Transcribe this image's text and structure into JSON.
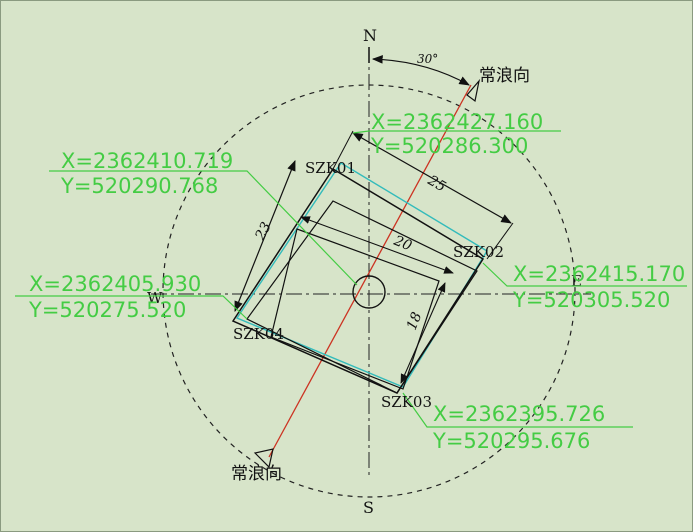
{
  "compass": {
    "north": "N",
    "south": "S",
    "east": "E",
    "west": "W",
    "wave_label_top": "常浪向",
    "wave_label_bottom": "常浪向",
    "angle_label": "30°"
  },
  "points": {
    "szk01": {
      "label": "SZK01",
      "x": "X=2362427.160",
      "y": "Y=520286.300"
    },
    "szk02": {
      "label": "SZK02",
      "x": "X=2362415.170",
      "y": "Y=520305.520"
    },
    "szk03": {
      "label": "SZK03",
      "x": "X=2362395.726",
      "y": "Y=520295.676"
    },
    "szk04": {
      "label": "SZK04",
      "x": "X=2362405.930",
      "y": "Y=520275.520"
    },
    "center": {
      "x": "X=2362410.719",
      "y": "Y=520290.768"
    }
  },
  "dimensions": {
    "outer_top": "25",
    "outer_left": "23",
    "inner_top": "20",
    "inner_right": "18"
  },
  "colors": {
    "background": "#d7e4c9",
    "coordinate_text": "#44cc44",
    "wave_axis": "#cc3322",
    "outline": "#111111",
    "cyan_edge": "#33bbbb"
  }
}
